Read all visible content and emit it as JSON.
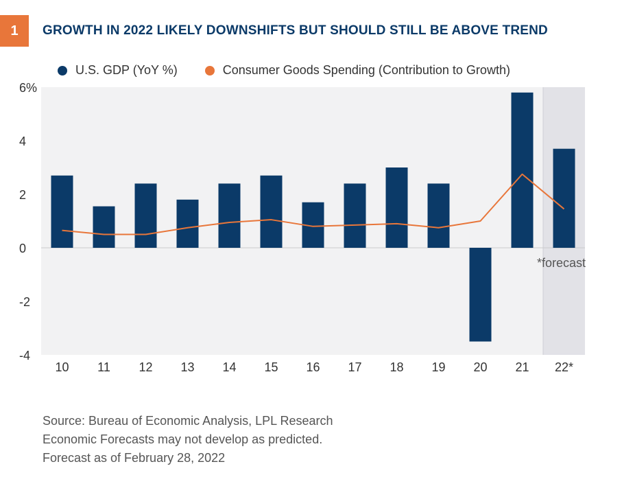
{
  "figure": {
    "number": "1",
    "title": "GROWTH IN 2022 LIKELY DOWNSHIFTS BUT SHOULD STILL BE ABOVE TREND"
  },
  "chart_data": {
    "type": "bar",
    "categories": [
      "10",
      "11",
      "12",
      "13",
      "14",
      "15",
      "16",
      "17",
      "18",
      "19",
      "20",
      "21",
      "22*"
    ],
    "series": [
      {
        "name": "U.S. GDP (YoY %)",
        "type": "bar",
        "color": "#0b3a68",
        "values": [
          2.7,
          1.55,
          2.4,
          1.8,
          2.4,
          2.7,
          1.7,
          2.4,
          3.0,
          2.4,
          -3.5,
          5.8,
          3.7
        ]
      },
      {
        "name": "Consumer Goods Spending (Contribution to Growth)",
        "type": "line",
        "color": "#e8763a",
        "values": [
          0.65,
          0.5,
          0.5,
          0.75,
          0.95,
          1.05,
          0.8,
          0.85,
          0.9,
          0.75,
          1.0,
          2.75,
          1.45
        ]
      }
    ],
    "ylim": [
      -4,
      6
    ],
    "yticks": [
      {
        "value": 6,
        "label": "6%"
      },
      {
        "value": 4,
        "label": "4"
      },
      {
        "value": 2,
        "label": "2"
      },
      {
        "value": 0,
        "label": "0"
      },
      {
        "value": -2,
        "label": "-2"
      },
      {
        "value": -4,
        "label": "-4"
      }
    ],
    "forecast_category": "22*",
    "forecast_label": "*forecast",
    "legend_position": "top",
    "plot_background": "#f2f2f3",
    "forecast_background": "#e2e2e7",
    "grid": false
  },
  "notes": {
    "line1": "Source: Bureau of Economic Analysis, LPL Research",
    "line2": "Economic Forecasts may not develop as predicted.",
    "line3": "Forecast as of February 28, 2022"
  }
}
